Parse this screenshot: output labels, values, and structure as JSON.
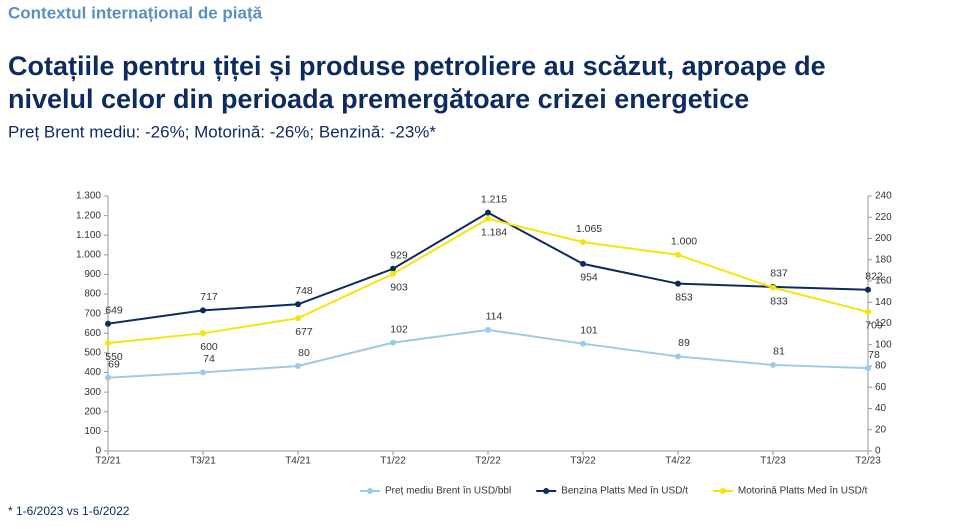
{
  "header": "Contextul internațional de piață",
  "chart_data": {
    "type": "line",
    "title": [
      "Cotațiile pentru țiței și produse petroliere au scăzut, aproape de",
      "nivelul celor din perioada premergătoare crizei energetice"
    ],
    "subtitle": "Preț Brent mediu: -26%; Motorină: -26%; Benzină: -23%*",
    "footnote": "* 1-6/2023 vs 1-6/2022",
    "categories": [
      "T2/21",
      "T3/21",
      "T4/21",
      "T1/22",
      "T2/22",
      "T3/22",
      "T4/22",
      "T1/23",
      "T2/23"
    ],
    "series": [
      {
        "name": "Preț mediu Brent în USD/bbl",
        "color": "#9ecae9",
        "axis": "y2",
        "values": [
          69,
          74,
          80,
          102,
          114,
          101,
          89,
          81,
          78
        ]
      },
      {
        "name": "Benzina Platts Med în USD/t",
        "color": "#0d2b5e",
        "values": [
          649,
          717,
          748,
          929,
          1215,
          954,
          853,
          837,
          822
        ],
        "value_labels": [
          "649",
          "717",
          "748",
          "929",
          "1.215",
          "954",
          "853",
          "837",
          "822"
        ]
      },
      {
        "name": "Motorină Platts Med în USD/t",
        "color": "#f5e50a",
        "values": [
          550,
          600,
          677,
          903,
          1184,
          1065,
          1000,
          833,
          709
        ],
        "value_labels": [
          "550",
          "600",
          "677",
          "903",
          "1.184",
          "1.065",
          "1.000",
          "833",
          "709"
        ]
      }
    ],
    "ylim": [
      0,
      1300
    ],
    "yticks": [
      0,
      100,
      200,
      300,
      400,
      500,
      600,
      700,
      800,
      900,
      {
        "value": 1000,
        "label": "1.000"
      },
      {
        "value": 1100,
        "label": "1.100"
      },
      {
        "value": 1200,
        "label": "1.200"
      },
      {
        "value": 1300,
        "label": "1.300"
      }
    ],
    "y2lim": [
      0,
      240
    ],
    "y2ticks": [
      0,
      20,
      40,
      60,
      80,
      100,
      120,
      140,
      160,
      180,
      200,
      220,
      240
    ],
    "legend": "bottom"
  }
}
